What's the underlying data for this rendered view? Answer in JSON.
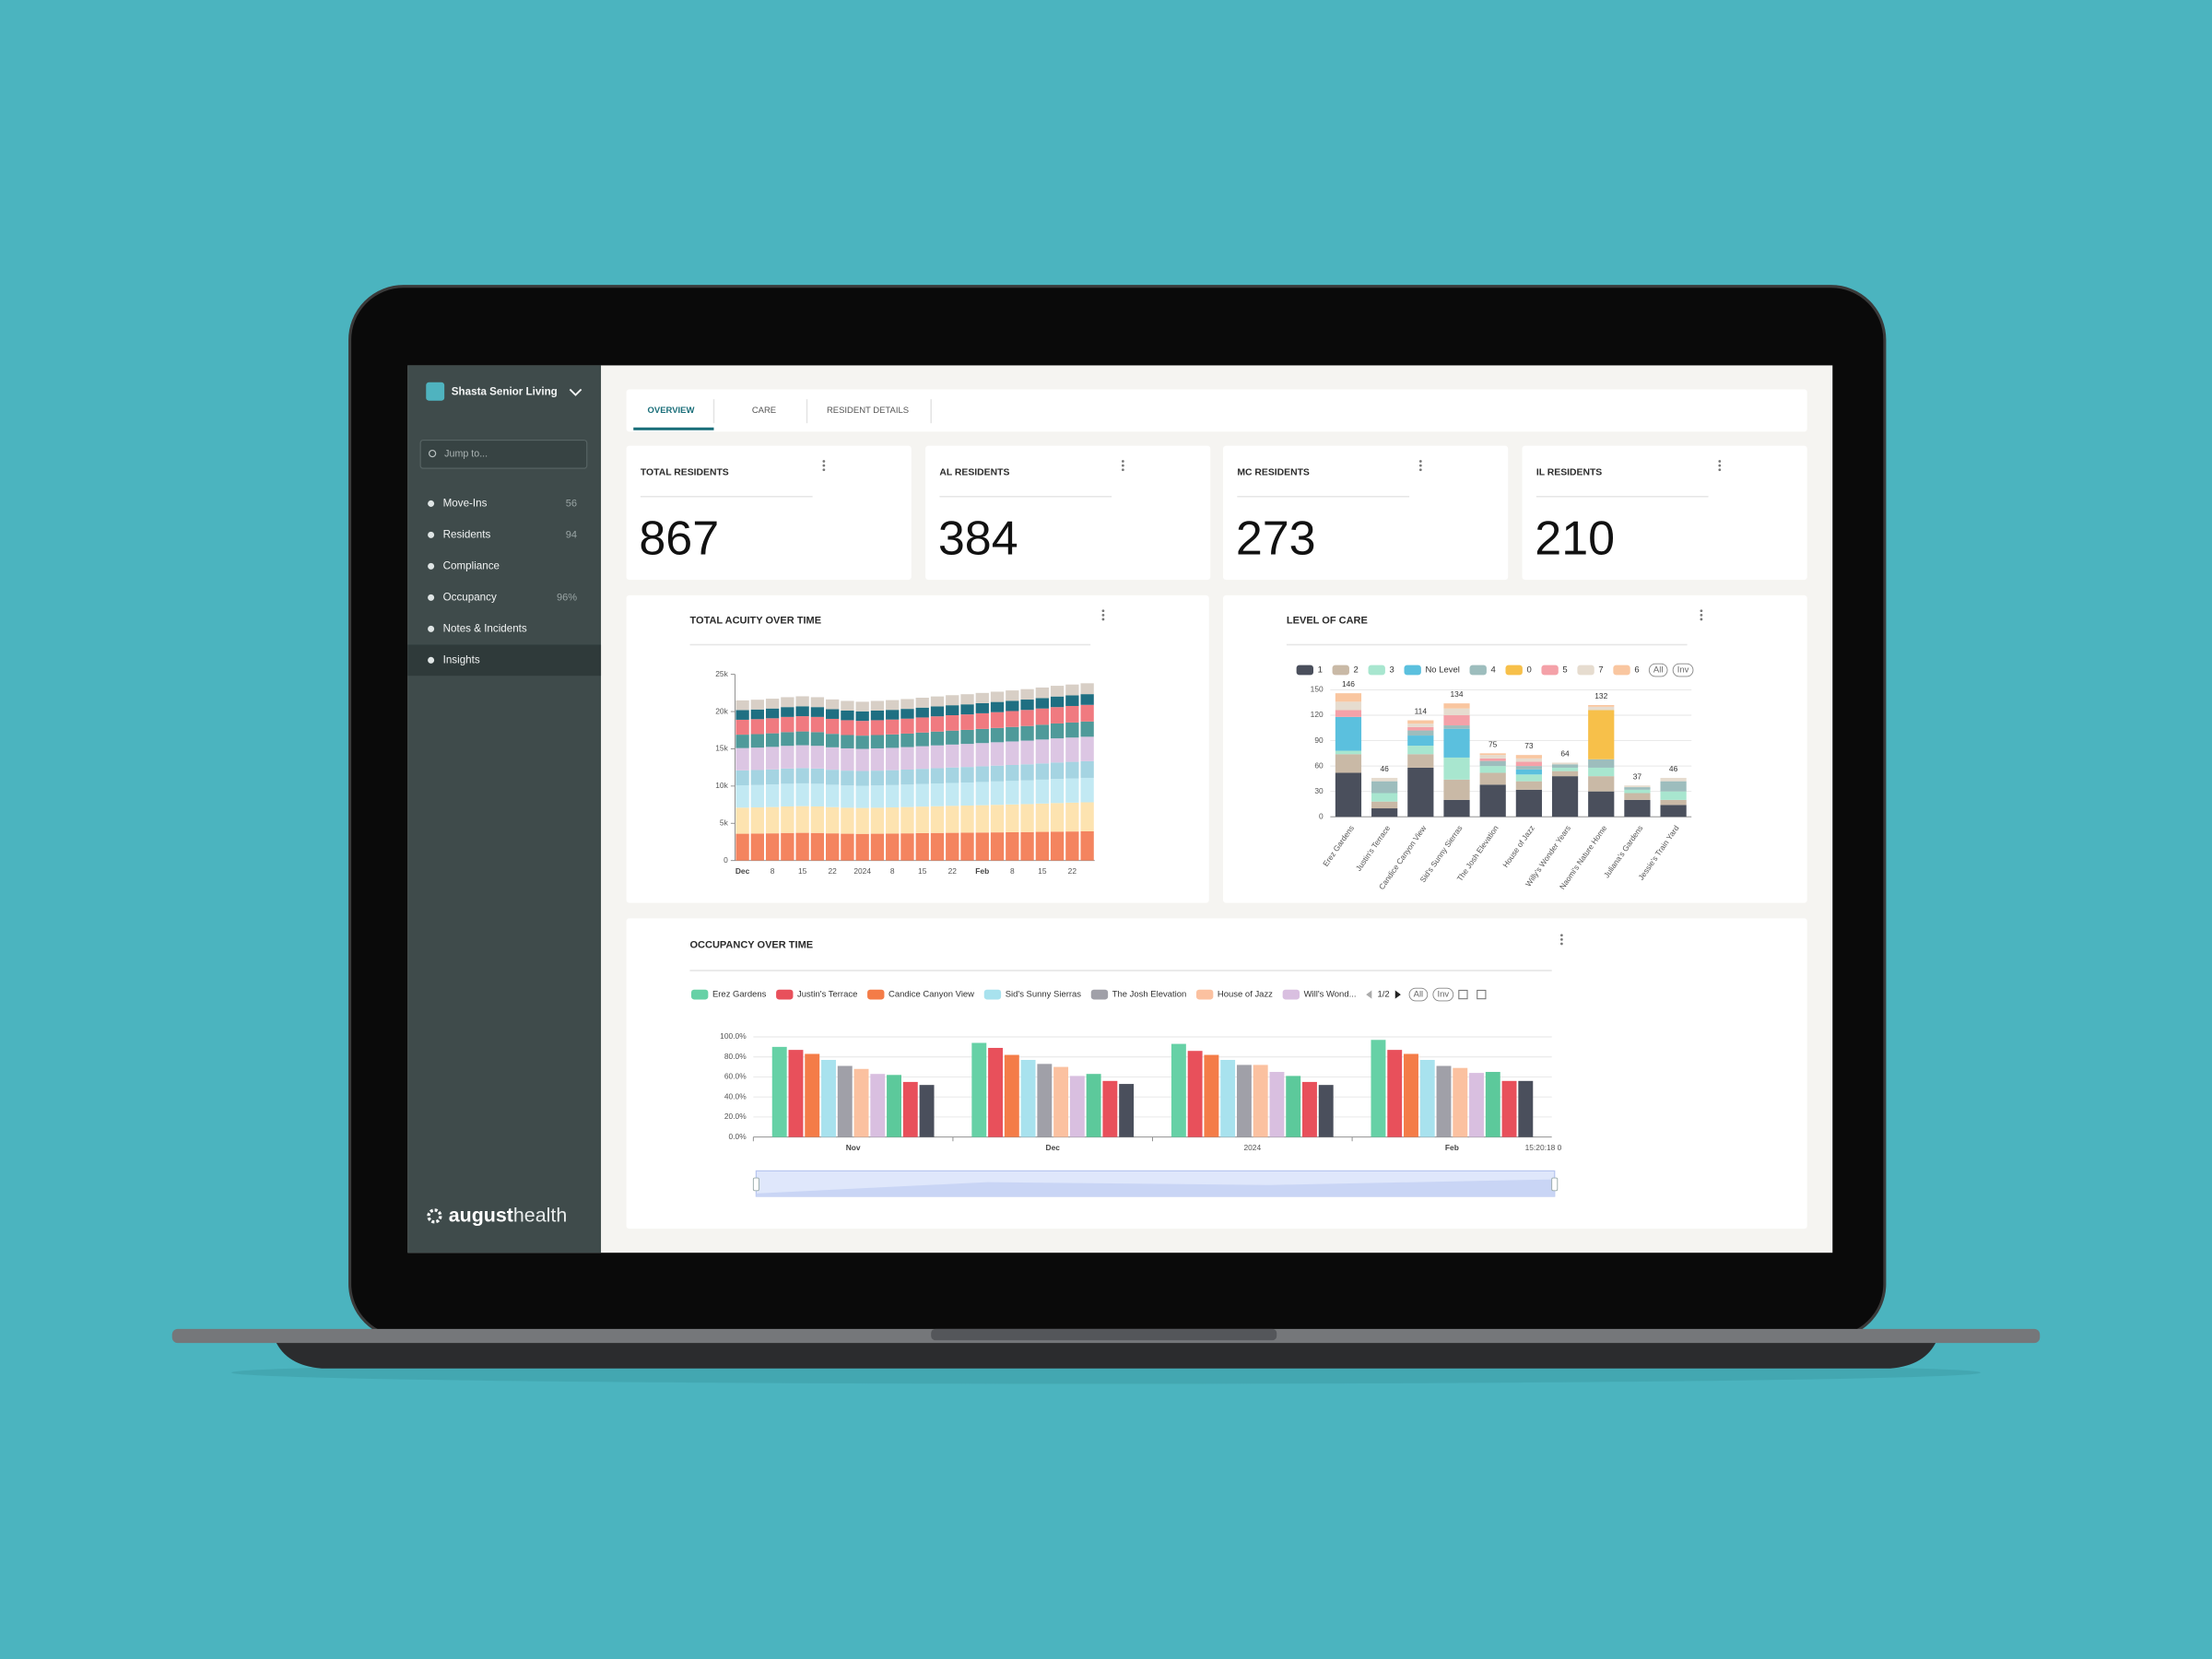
{
  "sidebar": {
    "facility": "Shasta Senior Living",
    "search_placeholder": "Jump to...",
    "nav": [
      {
        "label": "Move-Ins",
        "count": 56
      },
      {
        "label": "Residents",
        "count": 94
      },
      {
        "label": "Compliance"
      },
      {
        "label": "Occupancy",
        "count": "96%"
      },
      {
        "label": "Notes & Incidents"
      },
      {
        "label": "Insights"
      }
    ],
    "logo": {
      "bold": "august",
      "light": "health"
    }
  },
  "tabs": [
    "OVERVIEW",
    "CARE",
    "RESIDENT DETAILS"
  ],
  "stats": [
    {
      "label": "TOTAL RESIDENTS",
      "value": 867
    },
    {
      "label": "AL RESIDENTS",
      "value": 384
    },
    {
      "label": "MC RESIDENTS",
      "value": 273
    },
    {
      "label": "IL RESIDENTS",
      "value": 210
    }
  ],
  "chart_data": [
    {
      "type": "bar",
      "stacked": true,
      "title": "TOTAL ACUITY OVER TIME",
      "grid": false,
      "categories": [
        "Dec",
        null,
        "8",
        null,
        "15",
        null,
        "22",
        null,
        "2024",
        null,
        "8",
        null,
        "15",
        null,
        "22",
        null,
        "Feb",
        null,
        "8",
        null,
        "15",
        null,
        "22",
        null
      ],
      "ylim": [
        0,
        25000
      ],
      "yticks": [
        0,
        {
          "value": 5000,
          "label": "5k"
        },
        {
          "value": 10000,
          "label": "10k"
        },
        {
          "value": 15000,
          "label": "15k"
        },
        {
          "value": 20000,
          "label": "20k"
        },
        {
          "value": 25000,
          "label": "25k"
        }
      ],
      "series": [
        {
          "color": "#f4845f",
          "values": [
            3600,
            3620,
            3650,
            3700,
            3720,
            3700,
            3650,
            3600,
            3580,
            3600,
            3620,
            3650,
            3680,
            3700,
            3720,
            3740,
            3760,
            3780,
            3800,
            3820,
            3850,
            3880,
            3900,
            3920
          ]
        },
        {
          "color": "#fde3b0",
          "values": [
            3500,
            3510,
            3530,
            3560,
            3580,
            3560,
            3520,
            3490,
            3480,
            3490,
            3510,
            3530,
            3560,
            3590,
            3620,
            3640,
            3670,
            3700,
            3730,
            3760,
            3800,
            3840,
            3870,
            3900
          ]
        },
        {
          "color": "#c2e9f3",
          "values": [
            3000,
            3010,
            3030,
            3050,
            3060,
            3050,
            3010,
            2990,
            2980,
            2990,
            3000,
            3020,
            3040,
            3060,
            3080,
            3100,
            3120,
            3140,
            3160,
            3180,
            3210,
            3240,
            3260,
            3280
          ]
        },
        {
          "color": "#a5d4e2",
          "values": [
            2000,
            2010,
            2020,
            2040,
            2050,
            2040,
            2010,
            1990,
            1980,
            1990,
            2000,
            2010,
            2030,
            2050,
            2070,
            2080,
            2100,
            2120,
            2140,
            2160,
            2180,
            2200,
            2220,
            2240
          ]
        },
        {
          "color": "#dcc6e3",
          "values": [
            3000,
            3010,
            3030,
            3050,
            3070,
            3050,
            3010,
            2990,
            2970,
            2990,
            3000,
            3020,
            3040,
            3060,
            3080,
            3100,
            3120,
            3140,
            3160,
            3180,
            3210,
            3240,
            3260,
            3280
          ]
        },
        {
          "color": "#4f9a9a",
          "values": [
            1800,
            1810,
            1820,
            1840,
            1850,
            1840,
            1810,
            1790,
            1780,
            1790,
            1800,
            1810,
            1830,
            1850,
            1870,
            1880,
            1900,
            1920,
            1940,
            1960,
            1980,
            2000,
            2020,
            2040
          ]
        },
        {
          "color": "#f07a80",
          "values": [
            2000,
            2010,
            2020,
            2040,
            2050,
            2040,
            2010,
            1990,
            1980,
            1990,
            2000,
            2010,
            2030,
            2050,
            2070,
            2080,
            2100,
            2120,
            2140,
            2160,
            2180,
            2200,
            2220,
            2240
          ]
        },
        {
          "color": "#1f6f82",
          "values": [
            1300,
            1300,
            1310,
            1320,
            1330,
            1320,
            1300,
            1290,
            1280,
            1290,
            1300,
            1310,
            1320,
            1330,
            1340,
            1350,
            1360,
            1370,
            1380,
            1390,
            1400,
            1420,
            1430,
            1440
          ]
        },
        {
          "color": "#d8cfc6",
          "values": [
            1300,
            1310,
            1320,
            1330,
            1340,
            1330,
            1310,
            1300,
            1290,
            1300,
            1310,
            1320,
            1330,
            1340,
            1350,
            1360,
            1370,
            1380,
            1390,
            1400,
            1420,
            1440,
            1450,
            1460
          ]
        }
      ]
    },
    {
      "type": "bar",
      "stacked": true,
      "title": "LEVEL OF CARE",
      "grid": true,
      "categories": [
        "Erez Gardens",
        "Justin's Terrace",
        "Candice Canyon View",
        "Sid's Sunny Sierras",
        "The Josh Elevation",
        "House of Jazz",
        "Willy's Wonder Years",
        "Naomi's Nature Home",
        "Juliana's Gardens",
        "Jessie's Train Yard"
      ],
      "ylim": [
        0,
        150
      ],
      "yticks": [
        0,
        30,
        60,
        90,
        120,
        150
      ],
      "series": [
        {
          "name": "1",
          "color": "#4a4f5c",
          "values": [
            52,
            10,
            58,
            20,
            38,
            32,
            48,
            30,
            20,
            14
          ]
        },
        {
          "name": "2",
          "color": "#c9b9a6",
          "values": [
            22,
            8,
            16,
            24,
            14,
            10,
            6,
            18,
            8,
            6
          ]
        },
        {
          "name": "3",
          "color": "#a8e6cf",
          "values": [
            4,
            10,
            10,
            26,
            8,
            8,
            4,
            10,
            4,
            10
          ]
        },
        {
          "name": "No Level",
          "color": "#5bc0de",
          "values": [
            40,
            0,
            12,
            34,
            0,
            6,
            0,
            0,
            0,
            0
          ]
        },
        {
          "name": "4",
          "color": "#9dbdbd",
          "values": [
            0,
            14,
            6,
            4,
            6,
            4,
            4,
            10,
            3,
            12
          ]
        },
        {
          "name": "0",
          "color": "#f7c04a",
          "values": [
            0,
            0,
            0,
            0,
            0,
            0,
            0,
            58,
            0,
            0
          ]
        },
        {
          "name": "5",
          "color": "#f4a1a8",
          "values": [
            8,
            0,
            4,
            12,
            3,
            5,
            0,
            0,
            0,
            0
          ]
        },
        {
          "name": "7",
          "color": "#e6dccf",
          "values": [
            10,
            4,
            4,
            8,
            4,
            4,
            2,
            4,
            2,
            4
          ]
        },
        {
          "name": "6",
          "color": "#f9c6a0",
          "values": [
            10,
            0,
            4,
            6,
            2,
            4,
            0,
            2,
            0,
            0
          ]
        }
      ],
      "totals": [
        146,
        46,
        114,
        134,
        75,
        73,
        64,
        132,
        37,
        46
      ],
      "legend_buttons": [
        "All",
        "Inv"
      ]
    },
    {
      "type": "bar",
      "stacked": false,
      "title": "OCCUPANCY OVER TIME",
      "grid": true,
      "categories": [
        "Nov",
        "Dec",
        "2024",
        "Feb"
      ],
      "ylim": [
        0,
        100
      ],
      "yticks": [
        {
          "value": 0,
          "label": "0.0%"
        },
        {
          "value": 20,
          "label": "20.0%"
        },
        {
          "value": 40,
          "label": "40.0%"
        },
        {
          "value": 60,
          "label": "60.0%"
        },
        {
          "value": 80,
          "label": "80.0%"
        },
        {
          "value": 100,
          "label": "100.0%"
        }
      ],
      "series": [
        {
          "name": "Erez Gardens",
          "color": "#66d1a6",
          "values": [
            90,
            94,
            93,
            97
          ]
        },
        {
          "name": "Justin's Terrace",
          "color": "#e8505b",
          "values": [
            87,
            89,
            86,
            87
          ]
        },
        {
          "name": "Candice Canyon View",
          "color": "#f47c48",
          "values": [
            83,
            82,
            82,
            83
          ]
        },
        {
          "name": "Sid's Sunny Sierras",
          "color": "#a8e2ee",
          "values": [
            77,
            77,
            77,
            77
          ]
        },
        {
          "name": "The Josh Elevation",
          "color": "#a0a0a8",
          "values": [
            71,
            73,
            72,
            71
          ]
        },
        {
          "name": "House of Jazz",
          "color": "#fbc1a0",
          "values": [
            68,
            70,
            72,
            69
          ]
        },
        {
          "name": "Will's Wond...",
          "color": "#d9bfe0",
          "values": [
            63,
            61,
            65,
            64
          ]
        },
        {
          "color": "#5cc99b",
          "values": [
            62,
            63,
            61,
            65
          ]
        },
        {
          "color": "#e8505b",
          "values": [
            55,
            56,
            55,
            56
          ]
        },
        {
          "color": "#4a4f5c",
          "values": [
            52,
            53,
            52,
            56
          ]
        }
      ],
      "legend_page": "1/2",
      "legend_buttons": [
        "All",
        "Inv"
      ],
      "x_end_label": "15:20:18 0"
    }
  ]
}
